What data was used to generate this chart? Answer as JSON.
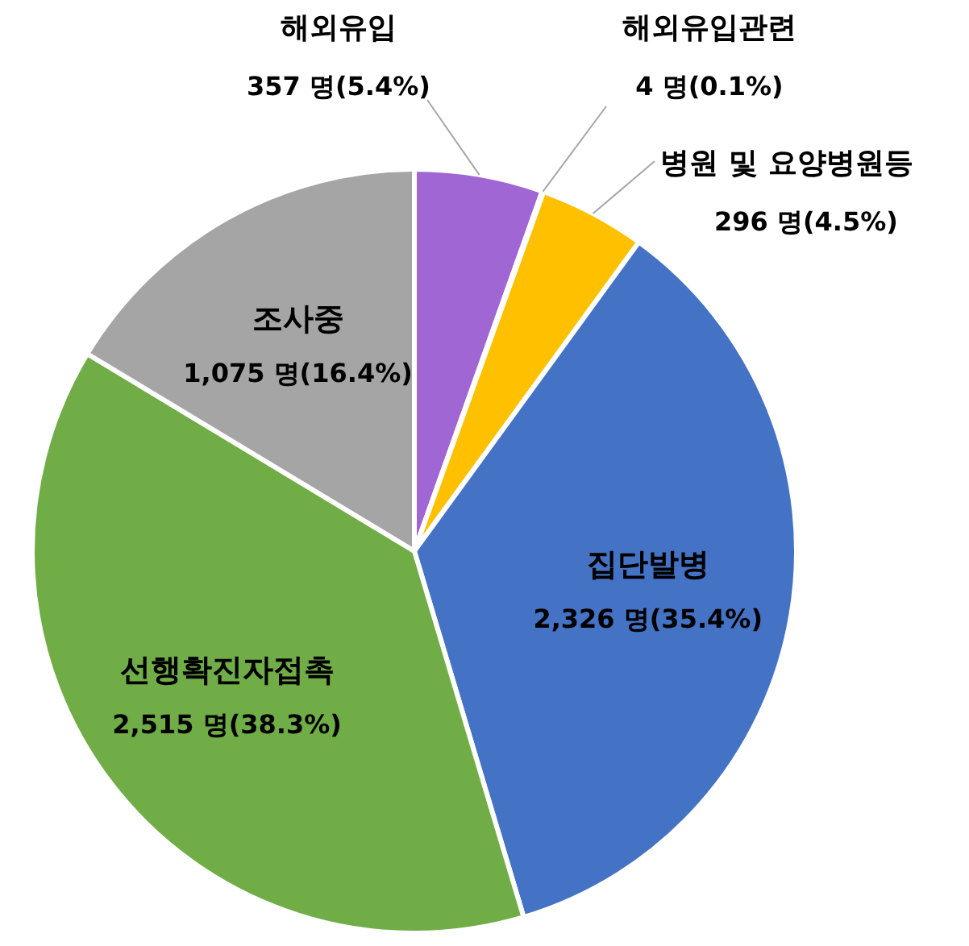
{
  "chart_data": {
    "type": "pie",
    "categories": [
      "해외유입",
      "해외유입관련",
      "병원 및 요양병원등",
      "집단발병",
      "선행확진자접촉",
      "조사중"
    ],
    "values": [
      357,
      4,
      296,
      2326,
      2515,
      1075
    ],
    "colors": [
      "#a066d3",
      "#ed7d31",
      "#ffc000",
      "#4472c4",
      "#70ad47",
      "#a5a5a5"
    ],
    "value_labels": [
      "357 명(5.4%)",
      "4 명(0.1%)",
      "296 명(4.5%)",
      "2,326 명(35.4%)",
      "2,515 명(38.3%)",
      "1,075 명(16.4%)"
    ]
  }
}
